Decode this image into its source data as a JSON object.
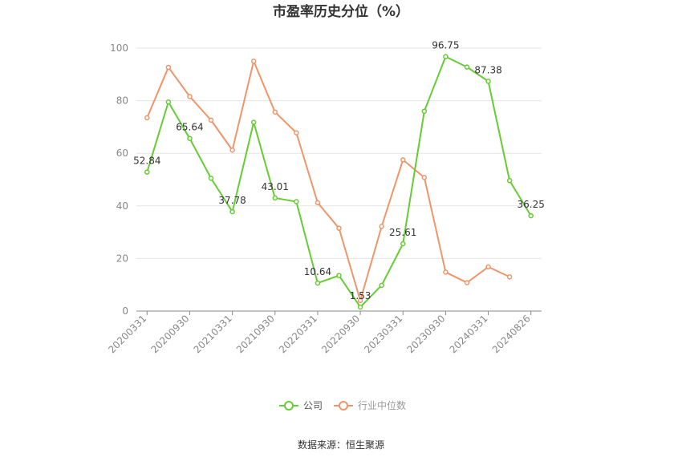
{
  "chart_data": {
    "type": "line",
    "title": "市盈率历史分位（%）",
    "xlabel": "",
    "ylabel": "",
    "ylim": [
      0,
      100
    ],
    "yticks": [
      0,
      20,
      40,
      60,
      80,
      100
    ],
    "x_tick_labels": [
      "20200331",
      "20200930",
      "20210331",
      "20210930",
      "20220331",
      "20220930",
      "20230331",
      "20230930",
      "20240331",
      "20240826"
    ],
    "grid": true,
    "legend_position": "bottom",
    "series": [
      {
        "name": "公司",
        "color": "#66cc33",
        "values": [
          52.84,
          79.5,
          65.64,
          50.5,
          37.78,
          71.8,
          43.01,
          41.6,
          10.64,
          13.5,
          1.53,
          9.8,
          25.61,
          76.0,
          96.75,
          92.8,
          87.38,
          49.6,
          36.25
        ]
      },
      {
        "name": "行业中位数",
        "color": "#f0956a",
        "values": [
          73.5,
          92.7,
          81.6,
          72.6,
          61.2,
          95.0,
          75.7,
          67.8,
          41.2,
          31.5,
          4.0,
          32.2,
          57.5,
          50.8,
          14.8,
          10.8,
          16.8,
          13.0,
          null
        ]
      }
    ],
    "data_labels": [
      {
        "series": 0,
        "index": 0,
        "text": "52.84"
      },
      {
        "series": 0,
        "index": 2,
        "text": "65.64"
      },
      {
        "series": 0,
        "index": 4,
        "text": "37.78"
      },
      {
        "series": 0,
        "index": 6,
        "text": "43.01"
      },
      {
        "series": 0,
        "index": 8,
        "text": "10.64"
      },
      {
        "series": 0,
        "index": 10,
        "text": "1.53"
      },
      {
        "series": 0,
        "index": 12,
        "text": "25.61"
      },
      {
        "series": 0,
        "index": 14,
        "text": "96.75"
      },
      {
        "series": 0,
        "index": 16,
        "text": "87.38"
      },
      {
        "series": 0,
        "index": 18,
        "text": "36.25"
      }
    ]
  },
  "source": "数据来源：恒生聚源"
}
